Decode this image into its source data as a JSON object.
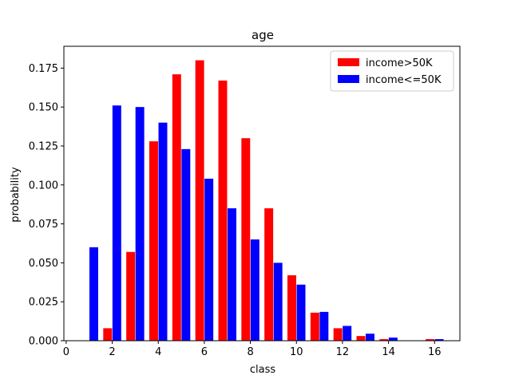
{
  "chart_data": {
    "type": "bar",
    "title": "age",
    "xlabel": "class",
    "ylabel": "probability",
    "xlim": [
      -0.1,
      17.1
    ],
    "ylim": [
      0,
      0.189
    ],
    "xticks": [
      0,
      2,
      4,
      6,
      8,
      10,
      12,
      14,
      16
    ],
    "xtick_labels": [
      "0",
      "2",
      "4",
      "6",
      "8",
      "10",
      "12",
      "14",
      "16"
    ],
    "yticks": [
      0,
      0.025,
      0.05,
      0.075,
      0.1,
      0.125,
      0.15,
      0.175
    ],
    "ytick_labels": [
      "0.000",
      "0.025",
      "0.050",
      "0.075",
      "0.100",
      "0.125",
      "0.150",
      "0.175"
    ],
    "categories": [
      1,
      2,
      3,
      4,
      5,
      6,
      7,
      8,
      9,
      10,
      11,
      12,
      13,
      14,
      15,
      16
    ],
    "legend_position": "top-right",
    "series": [
      {
        "name": "income>50K",
        "color": "#ff0000",
        "values": [
          0.0,
          0.008,
          0.057,
          0.128,
          0.171,
          0.18,
          0.167,
          0.13,
          0.085,
          0.042,
          0.018,
          0.008,
          0.003,
          0.001,
          0.0,
          0.001
        ]
      },
      {
        "name": "income<=50K",
        "color": "#0000ff",
        "values": [
          0.06,
          0.151,
          0.15,
          0.14,
          0.123,
          0.104,
          0.085,
          0.065,
          0.05,
          0.036,
          0.0185,
          0.0095,
          0.0045,
          0.002,
          0.0,
          0.001
        ]
      }
    ]
  }
}
